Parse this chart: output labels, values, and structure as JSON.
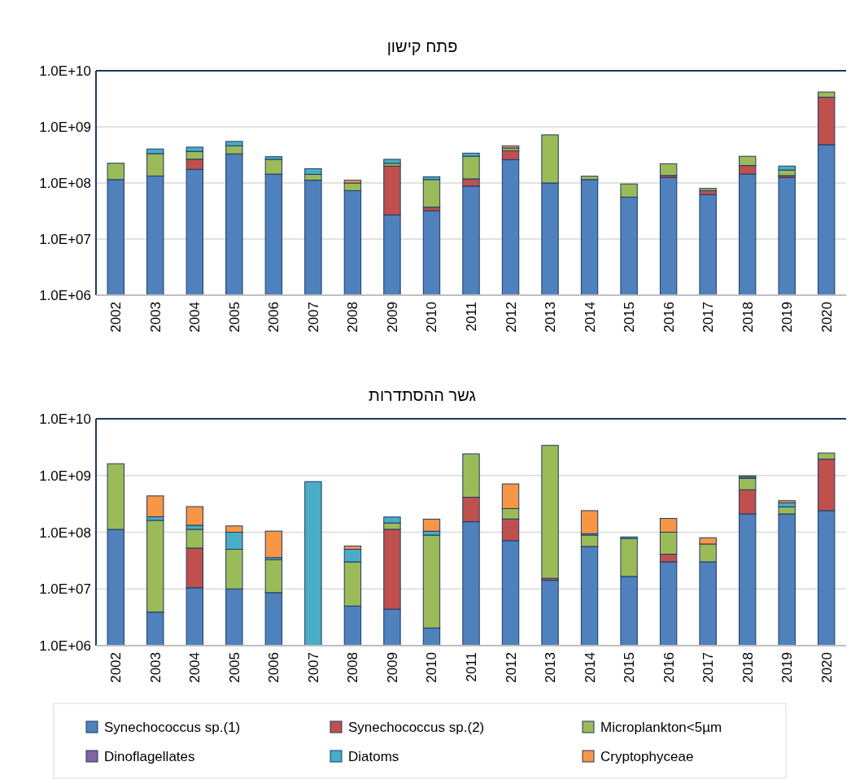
{
  "chart_data": [
    {
      "type": "bar",
      "title": "פתח קישון",
      "stacked": true,
      "log": true,
      "grid": "y",
      "legend": "bottom",
      "categories": [
        "2002",
        "2003",
        "2004",
        "2005",
        "2006",
        "2007",
        "2008",
        "2009",
        "2010",
        "2011",
        "2012",
        "2013",
        "2014",
        "2015",
        "2016",
        "2017",
        "2018",
        "2019",
        "2020"
      ],
      "ylim": [
        1000000,
        10000000000
      ],
      "yticks": [
        {
          "value": 1000000,
          "label": "1.0E+06"
        },
        {
          "value": 10000000,
          "label": "1.0E+07"
        },
        {
          "value": 100000000,
          "label": "1.0E+08"
        },
        {
          "value": 1000000000,
          "label": "1.0E+09"
        },
        {
          "value": 10000000000,
          "label": "1.0E+10"
        }
      ],
      "series": [
        {
          "name": "Synechococcus sp.(1)",
          "color": "#4f81bd",
          "values": [
            115000000,
            133000000,
            175000000,
            330000000,
            144000000,
            112000000,
            73000000,
            27000000,
            32000000,
            88000000,
            260000000,
            100000000,
            115000000,
            56000000,
            125000000,
            62000000,
            144000000,
            125000000,
            480000000
          ]
        },
        {
          "name": "Synechococcus sp.(2)",
          "color": "#c0504d",
          "values": [
            null,
            null,
            90000000,
            null,
            null,
            null,
            null,
            173000000,
            5000000,
            30000000,
            115000000,
            null,
            null,
            null,
            11000000,
            11000000,
            60000000,
            10000000,
            2900000000
          ]
        },
        {
          "name": "Microplankton<5µm",
          "color": "#9bbb59",
          "values": [
            110000000,
            200000000,
            100000000,
            130000000,
            120000000,
            30000000,
            27000000,
            24000000,
            78000000,
            182000000,
            45000000,
            620000000,
            17000000,
            40000000,
            84000000,
            7000000,
            95000000,
            35000000,
            800000000
          ]
        },
        {
          "name": "Dinoflagellates",
          "color": "#8064a2",
          "values": [
            null,
            null,
            null,
            null,
            null,
            null,
            null,
            null,
            null,
            null,
            null,
            null,
            null,
            null,
            null,
            null,
            null,
            null,
            null
          ]
        },
        {
          "name": "Diatoms",
          "color": "#4bacc6",
          "values": [
            null,
            70000000,
            70000000,
            90000000,
            30000000,
            38000000,
            null,
            40000000,
            14000000,
            40000000,
            null,
            null,
            null,
            null,
            null,
            null,
            null,
            30000000,
            null
          ]
        },
        {
          "name": "Cryptophyceae",
          "color": "#f79646",
          "values": [
            null,
            null,
            null,
            null,
            null,
            null,
            12000000,
            null,
            null,
            null,
            40000000,
            null,
            null,
            null,
            null,
            null,
            null,
            null,
            null
          ]
        }
      ]
    },
    {
      "type": "bar",
      "title": "גשר ההסתדרות",
      "stacked": true,
      "log": true,
      "grid": "y",
      "categories": [
        "2002",
        "2003",
        "2004",
        "2005",
        "2006",
        "2007",
        "2008",
        "2009",
        "2010",
        "2011",
        "2012",
        "2013",
        "2014",
        "2015",
        "2016",
        "2017",
        "2018",
        "2019",
        "2020"
      ],
      "ylim": [
        1000000,
        10000000000
      ],
      "yticks": [
        {
          "value": 1000000,
          "label": "1.0E+06"
        },
        {
          "value": 10000000,
          "label": "1.0E+07"
        },
        {
          "value": 100000000,
          "label": "1.0E+08"
        },
        {
          "value": 1000000000,
          "label": "1.0E+09"
        },
        {
          "value": 10000000000,
          "label": "1.0E+10"
        }
      ],
      "series": [
        {
          "color": "#4f81bd",
          "values": [
            112000000,
            3900000,
            10500000,
            10000000,
            8600000,
            null,
            5000000,
            4400000,
            2050000,
            153000000,
            71000000,
            14200000,
            56000000,
            16600000,
            30000000,
            30000000,
            210000000,
            210000000,
            240000000
          ]
        },
        {
          "color": "#c0504d",
          "values": [
            null,
            null,
            42000000,
            null,
            null,
            null,
            null,
            108000000,
            null,
            260000000,
            100000000,
            1200000,
            null,
            null,
            11000000,
            null,
            350000000,
            null,
            1700000000
          ]
        },
        {
          "color": "#9bbb59",
          "values": [
            1500000000,
            158000000,
            60000000,
            40000000,
            24000000,
            null,
            25000000,
            33000000,
            87000000,
            2000000000,
            90000000,
            3380000000,
            33000000,
            61000000,
            59000000,
            32000000,
            330000000,
            70000000,
            550000000
          ]
        },
        {
          "values": [
            null,
            null,
            null,
            null,
            null,
            null,
            null,
            null,
            null,
            null,
            null,
            null,
            null,
            null,
            null,
            null,
            null,
            null,
            null
          ]
        },
        {
          "color": "#4bacc6",
          "values": [
            null,
            25000000,
            20000000,
            50000000,
            3000000,
            780000000,
            20000000,
            40000000,
            15000000,
            null,
            null,
            null,
            5000000,
            5000000,
            null,
            null,
            50000000,
            50000000,
            null
          ]
        },
        {
          "color": "#f79646",
          "values": [
            null,
            250000000,
            150000000,
            29000000,
            69000000,
            null,
            7000000,
            null,
            66000000,
            null,
            450000000,
            null,
            146000000,
            null,
            75000000,
            18000000,
            50000000,
            30000000,
            null
          ]
        }
      ]
    }
  ]
}
